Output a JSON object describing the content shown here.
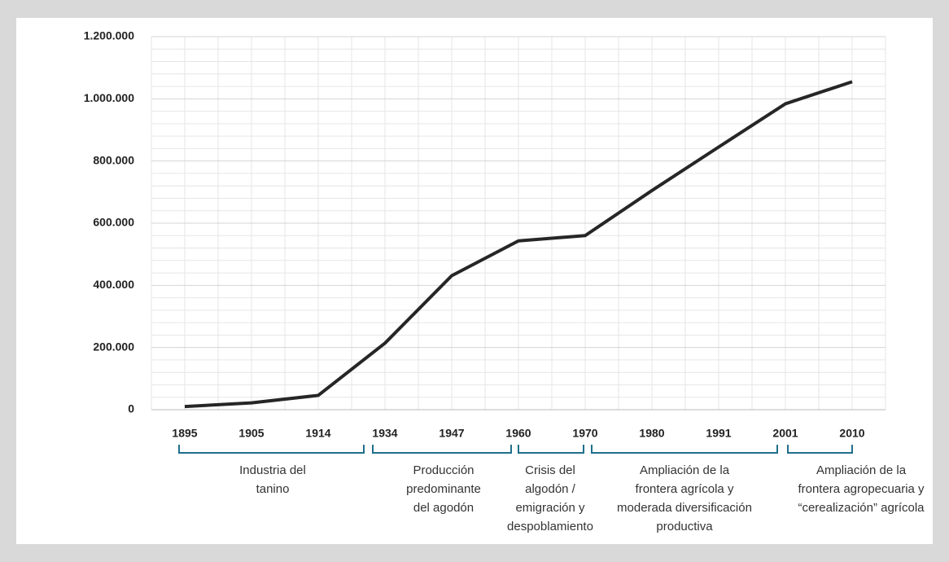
{
  "chart_data": {
    "type": "line",
    "categories": [
      "1895",
      "1905",
      "1914",
      "1934",
      "1947",
      "1960",
      "1970",
      "1980",
      "1991",
      "2001",
      "2010"
    ],
    "series": [
      {
        "color": "#262626",
        "values": [
          10000,
          22000,
          46000,
          214000,
          431000,
          543000,
          560000,
          705000,
          845000,
          984000,
          1055000
        ]
      }
    ],
    "ylim": [
      0,
      1200000
    ],
    "yticks": [
      0,
      {
        "value": 200000,
        "label": "200.000"
      },
      {
        "value": 400000,
        "label": "400.000"
      },
      {
        "value": 600000,
        "label": "600.000"
      },
      {
        "value": 800000,
        "label": "800.000"
      },
      {
        "value": 1000000,
        "label": "1.000.000"
      },
      {
        "value": 1200000,
        "label": "1.200.000"
      }
    ],
    "grid": true,
    "periods": [
      {
        "lines": [
          "Industria del",
          "tanino"
        ]
      },
      {
        "lines": [
          "Producción",
          "predominante",
          "del agodón"
        ]
      },
      {
        "lines": [
          "Crisis del",
          "algodón /",
          "emigración y",
          "despoblamiento"
        ]
      },
      {
        "lines": [
          "Ampliación de la",
          "frontera agrícola y",
          "moderada diversificación",
          "productiva"
        ]
      },
      {
        "lines": [
          "Ampliación de la",
          "frontera agropecuaria y",
          "“cerealización” agrícola"
        ]
      }
    ],
    "period_color": "#1f6f8b"
  }
}
